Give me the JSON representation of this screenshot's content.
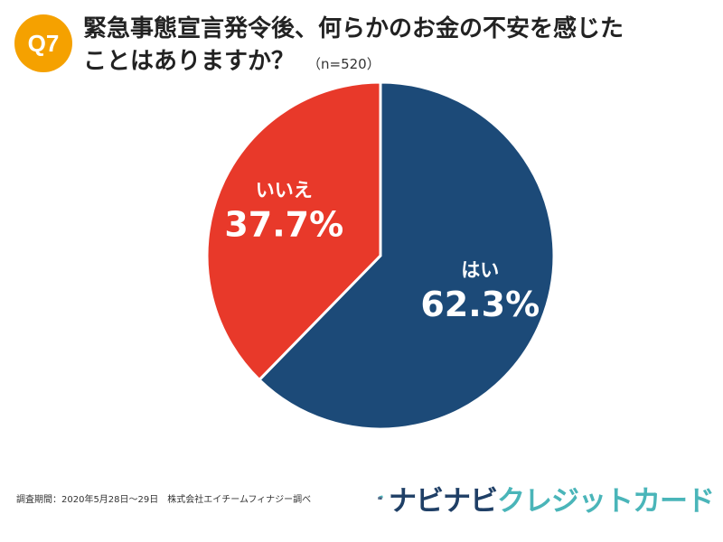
{
  "question_badge": "Q7",
  "title": {
    "line1": "緊急事態宣言発令後、何らかのお金の不安を感じた",
    "line2": "ことはありますか？",
    "sample_note": "（n=520）"
  },
  "chart_data": {
    "type": "pie",
    "start_angle_deg": 0,
    "direction": "clockwise",
    "slices": [
      {
        "label": "はい",
        "value": 62.3,
        "display": "62.3%",
        "color": "#1c4a78"
      },
      {
        "label": "いいえ",
        "value": 37.7,
        "display": "37.7%",
        "color": "#e8392a"
      }
    ]
  },
  "footnote": "調査期間：2020年5月28日〜29日　株式会社エイチームフィナジー調べ",
  "brand": {
    "icon": "credit-card-icon",
    "name_part1": "ナビナビ",
    "name_part2": "クレジットカード",
    "color1": "#1f3f66",
    "color2": "#4ab5b9"
  }
}
